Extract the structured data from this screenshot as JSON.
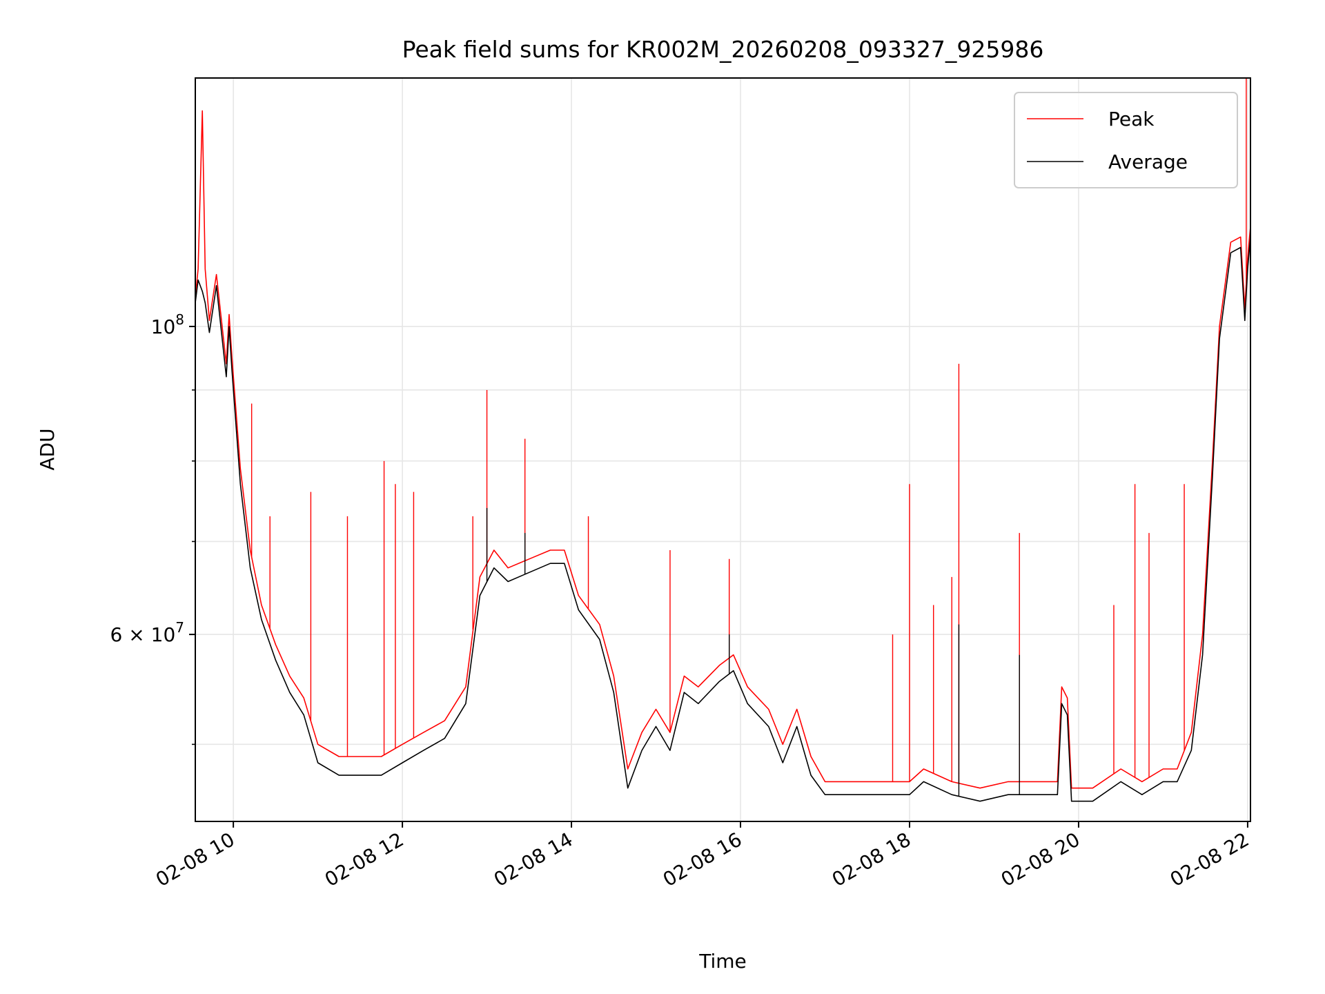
{
  "chart_data": {
    "type": "line",
    "title": "Peak field sums for KR002M_20260208_093327_925986",
    "xlabel": "Time",
    "ylabel": "ADU",
    "x_range": [
      "2026-02-08T09:33",
      "2026-02-08T22:02"
    ],
    "y_scale": "log",
    "ylim": [
      44000000,
      151000000
    ],
    "grid": true,
    "legend_position": "top-right",
    "x_ticks": [
      {
        "t": "2026-02-08T10:00",
        "label": "02-08 10"
      },
      {
        "t": "2026-02-08T12:00",
        "label": "02-08 12"
      },
      {
        "t": "2026-02-08T14:00",
        "label": "02-08 14"
      },
      {
        "t": "2026-02-08T16:00",
        "label": "02-08 16"
      },
      {
        "t": "2026-02-08T18:00",
        "label": "02-08 18"
      },
      {
        "t": "2026-02-08T20:00",
        "label": "02-08 20"
      },
      {
        "t": "2026-02-08T22:00",
        "label": "02-08 22"
      }
    ],
    "y_major_ticks": [
      {
        "value": 60000000,
        "mantissa": "6",
        "exponent": "7"
      },
      {
        "value": 100000000,
        "mantissa": "",
        "exponent": "8"
      }
    ],
    "y_minor_ticks": [
      50000000,
      70000000,
      80000000,
      90000000
    ],
    "series": [
      {
        "name": "Peak",
        "color": "#ff0000",
        "points": [
          [
            "2026-02-08T09:33",
            105000000
          ],
          [
            "2026-02-08T09:35",
            110000000
          ],
          [
            "2026-02-08T09:38",
            143000000
          ],
          [
            "2026-02-08T09:40",
            110000000
          ],
          [
            "2026-02-08T09:43",
            101000000
          ],
          [
            "2026-02-08T09:48",
            109000000
          ],
          [
            "2026-02-08T09:55",
            94000000
          ],
          [
            "2026-02-08T09:57",
            102000000
          ],
          [
            "2026-02-08T09:59",
            95000000
          ],
          [
            "2026-02-08T10:05",
            79000000
          ],
          [
            "2026-02-08T10:12",
            69000000
          ],
          [
            "2026-02-08T10:20",
            63000000
          ],
          [
            "2026-02-08T10:30",
            59000000
          ],
          [
            "2026-02-08T10:40",
            56000000
          ],
          [
            "2026-02-08T10:50",
            54000000
          ],
          [
            "2026-02-08T11:00",
            50000000
          ],
          [
            "2026-02-08T11:15",
            49000000
          ],
          [
            "2026-02-08T11:30",
            49000000
          ],
          [
            "2026-02-08T11:45",
            49000000
          ],
          [
            "2026-02-08T12:00",
            50000000
          ],
          [
            "2026-02-08T12:15",
            51000000
          ],
          [
            "2026-02-08T12:30",
            52000000
          ],
          [
            "2026-02-08T12:45",
            55000000
          ],
          [
            "2026-02-08T12:55",
            66000000
          ],
          [
            "2026-02-08T13:05",
            69000000
          ],
          [
            "2026-02-08T13:15",
            67000000
          ],
          [
            "2026-02-08T13:30",
            68000000
          ],
          [
            "2026-02-08T13:45",
            69000000
          ],
          [
            "2026-02-08T13:55",
            69000000
          ],
          [
            "2026-02-08T14:05",
            64000000
          ],
          [
            "2026-02-08T14:20",
            61000000
          ],
          [
            "2026-02-08T14:30",
            56000000
          ],
          [
            "2026-02-08T14:40",
            48000000
          ],
          [
            "2026-02-08T14:50",
            51000000
          ],
          [
            "2026-02-08T15:00",
            53000000
          ],
          [
            "2026-02-08T15:10",
            51000000
          ],
          [
            "2026-02-08T15:20",
            56000000
          ],
          [
            "2026-02-08T15:30",
            55000000
          ],
          [
            "2026-02-08T15:45",
            57000000
          ],
          [
            "2026-02-08T15:55",
            58000000
          ],
          [
            "2026-02-08T16:05",
            55000000
          ],
          [
            "2026-02-08T16:20",
            53000000
          ],
          [
            "2026-02-08T16:30",
            50000000
          ],
          [
            "2026-02-08T16:40",
            53000000
          ],
          [
            "2026-02-08T16:50",
            49000000
          ],
          [
            "2026-02-08T17:00",
            47000000
          ],
          [
            "2026-02-08T17:20",
            47000000
          ],
          [
            "2026-02-08T17:40",
            47000000
          ],
          [
            "2026-02-08T18:00",
            47000000
          ],
          [
            "2026-02-08T18:10",
            48000000
          ],
          [
            "2026-02-08T18:30",
            47000000
          ],
          [
            "2026-02-08T18:50",
            46500000
          ],
          [
            "2026-02-08T19:10",
            47000000
          ],
          [
            "2026-02-08T19:30",
            47000000
          ],
          [
            "2026-02-08T19:45",
            47000000
          ],
          [
            "2026-02-08T19:48",
            55000000
          ],
          [
            "2026-02-08T19:52",
            54000000
          ],
          [
            "2026-02-08T19:55",
            46500000
          ],
          [
            "2026-02-08T20:10",
            46500000
          ],
          [
            "2026-02-08T20:30",
            48000000
          ],
          [
            "2026-02-08T20:45",
            47000000
          ],
          [
            "2026-02-08T21:00",
            48000000
          ],
          [
            "2026-02-08T21:10",
            48000000
          ],
          [
            "2026-02-08T21:20",
            51000000
          ],
          [
            "2026-02-08T21:28",
            60000000
          ],
          [
            "2026-02-08T21:35",
            80000000
          ],
          [
            "2026-02-08T21:40",
            100000000
          ],
          [
            "2026-02-08T21:48",
            115000000
          ],
          [
            "2026-02-08T21:55",
            116000000
          ],
          [
            "2026-02-08T21:58",
            103000000
          ],
          [
            "2026-02-08T22:00",
            112000000
          ],
          [
            "2026-02-08T22:02",
            118000000
          ]
        ],
        "spikes": [
          [
            "2026-02-08T10:13",
            88000000
          ],
          [
            "2026-02-08T10:26",
            73000000
          ],
          [
            "2026-02-08T10:55",
            76000000
          ],
          [
            "2026-02-08T11:21",
            73000000
          ],
          [
            "2026-02-08T11:47",
            80000000
          ],
          [
            "2026-02-08T11:55",
            77000000
          ],
          [
            "2026-02-08T12:08",
            76000000
          ],
          [
            "2026-02-08T12:50",
            73000000
          ],
          [
            "2026-02-08T13:00",
            90000000
          ],
          [
            "2026-02-08T13:27",
            83000000
          ],
          [
            "2026-02-08T14:12",
            73000000
          ],
          [
            "2026-02-08T15:10",
            69000000
          ],
          [
            "2026-02-08T15:52",
            68000000
          ],
          [
            "2026-02-08T17:48",
            60000000
          ],
          [
            "2026-02-08T18:00",
            77000000
          ],
          [
            "2026-02-08T18:17",
            63000000
          ],
          [
            "2026-02-08T18:30",
            66000000
          ],
          [
            "2026-02-08T18:35",
            94000000
          ],
          [
            "2026-02-08T19:18",
            71000000
          ],
          [
            "2026-02-08T20:25",
            63000000
          ],
          [
            "2026-02-08T20:40",
            77000000
          ],
          [
            "2026-02-08T20:50",
            71000000
          ],
          [
            "2026-02-08T21:15",
            77000000
          ],
          [
            "2026-02-08T21:59",
            151000000
          ]
        ]
      },
      {
        "name": "Average",
        "color": "#000000",
        "points": [
          [
            "2026-02-08T09:33",
            104000000
          ],
          [
            "2026-02-08T09:35",
            108000000
          ],
          [
            "2026-02-08T09:38",
            106000000
          ],
          [
            "2026-02-08T09:40",
            104000000
          ],
          [
            "2026-02-08T09:43",
            99000000
          ],
          [
            "2026-02-08T09:48",
            107000000
          ],
          [
            "2026-02-08T09:55",
            92000000
          ],
          [
            "2026-02-08T09:57",
            100000000
          ],
          [
            "2026-02-08T09:59",
            93000000
          ],
          [
            "2026-02-08T10:05",
            77000000
          ],
          [
            "2026-02-08T10:12",
            67000000
          ],
          [
            "2026-02-08T10:20",
            61500000
          ],
          [
            "2026-02-08T10:30",
            57500000
          ],
          [
            "2026-02-08T10:40",
            54500000
          ],
          [
            "2026-02-08T10:50",
            52500000
          ],
          [
            "2026-02-08T11:00",
            48500000
          ],
          [
            "2026-02-08T11:15",
            47500000
          ],
          [
            "2026-02-08T11:30",
            47500000
          ],
          [
            "2026-02-08T11:45",
            47500000
          ],
          [
            "2026-02-08T12:00",
            48500000
          ],
          [
            "2026-02-08T12:15",
            49500000
          ],
          [
            "2026-02-08T12:30",
            50500000
          ],
          [
            "2026-02-08T12:45",
            53500000
          ],
          [
            "2026-02-08T12:55",
            64000000
          ],
          [
            "2026-02-08T13:05",
            67000000
          ],
          [
            "2026-02-08T13:15",
            65500000
          ],
          [
            "2026-02-08T13:30",
            66500000
          ],
          [
            "2026-02-08T13:45",
            67500000
          ],
          [
            "2026-02-08T13:55",
            67500000
          ],
          [
            "2026-02-08T14:05",
            62500000
          ],
          [
            "2026-02-08T14:20",
            59500000
          ],
          [
            "2026-02-08T14:30",
            54500000
          ],
          [
            "2026-02-08T14:40",
            46500000
          ],
          [
            "2026-02-08T14:50",
            49500000
          ],
          [
            "2026-02-08T15:00",
            51500000
          ],
          [
            "2026-02-08T15:10",
            49500000
          ],
          [
            "2026-02-08T15:20",
            54500000
          ],
          [
            "2026-02-08T15:30",
            53500000
          ],
          [
            "2026-02-08T15:45",
            55500000
          ],
          [
            "2026-02-08T15:55",
            56500000
          ],
          [
            "2026-02-08T16:05",
            53500000
          ],
          [
            "2026-02-08T16:20",
            51500000
          ],
          [
            "2026-02-08T16:30",
            48500000
          ],
          [
            "2026-02-08T16:40",
            51500000
          ],
          [
            "2026-02-08T16:50",
            47500000
          ],
          [
            "2026-02-08T17:00",
            46000000
          ],
          [
            "2026-02-08T17:20",
            46000000
          ],
          [
            "2026-02-08T17:40",
            46000000
          ],
          [
            "2026-02-08T18:00",
            46000000
          ],
          [
            "2026-02-08T18:10",
            47000000
          ],
          [
            "2026-02-08T18:30",
            46000000
          ],
          [
            "2026-02-08T18:50",
            45500000
          ],
          [
            "2026-02-08T19:10",
            46000000
          ],
          [
            "2026-02-08T19:30",
            46000000
          ],
          [
            "2026-02-08T19:45",
            46000000
          ],
          [
            "2026-02-08T19:48",
            53500000
          ],
          [
            "2026-02-08T19:52",
            52500000
          ],
          [
            "2026-02-08T19:55",
            45500000
          ],
          [
            "2026-02-08T20:10",
            45500000
          ],
          [
            "2026-02-08T20:30",
            47000000
          ],
          [
            "2026-02-08T20:45",
            46000000
          ],
          [
            "2026-02-08T21:00",
            47000000
          ],
          [
            "2026-02-08T21:10",
            47000000
          ],
          [
            "2026-02-08T21:20",
            49500000
          ],
          [
            "2026-02-08T21:28",
            58000000
          ],
          [
            "2026-02-08T21:35",
            78000000
          ],
          [
            "2026-02-08T21:40",
            98000000
          ],
          [
            "2026-02-08T21:48",
            113000000
          ],
          [
            "2026-02-08T21:55",
            114000000
          ],
          [
            "2026-02-08T21:58",
            101000000
          ],
          [
            "2026-02-08T22:00",
            110000000
          ],
          [
            "2026-02-08T22:02",
            116000000
          ]
        ],
        "spikes": [
          [
            "2026-02-08T13:00",
            74000000
          ],
          [
            "2026-02-08T13:27",
            71000000
          ],
          [
            "2026-02-08T18:35",
            61000000
          ],
          [
            "2026-02-08T19:18",
            58000000
          ],
          [
            "2026-02-08T15:52",
            60000000
          ]
        ]
      }
    ]
  }
}
